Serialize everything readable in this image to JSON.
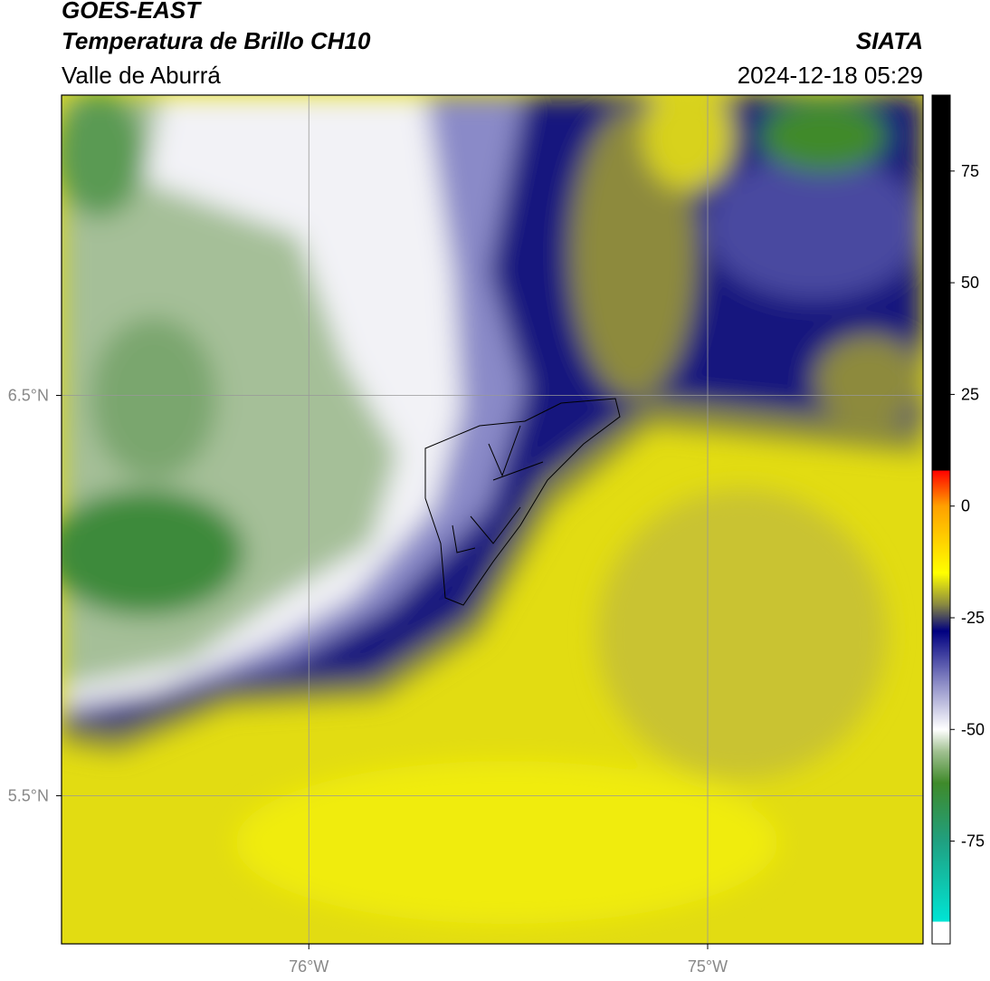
{
  "header": {
    "satellite": "GOES-EAST",
    "product": "Temperatura de Brillo CH10",
    "region": "Valle de Aburrá",
    "source": "SIATA",
    "datetime": "2024-12-18 05:29"
  },
  "map": {
    "xlim": [
      -76.62,
      -74.46
    ],
    "ylim": [
      5.13,
      7.25
    ],
    "xticks": [
      {
        "value": -76,
        "label": "76°W"
      },
      {
        "value": -75,
        "label": "75°W"
      }
    ],
    "yticks": [
      {
        "value": 6.5,
        "label": "6.5°N"
      },
      {
        "value": 5.5,
        "label": "5.5°N"
      }
    ]
  },
  "colorbar": {
    "lim": [
      -98,
      92
    ],
    "ticks": [
      75,
      50,
      25,
      0,
      -25,
      -50,
      -75
    ],
    "stops": [
      {
        "value": -98,
        "color": "#ffffff"
      },
      {
        "value": -93,
        "color": "#ffffff"
      },
      {
        "value": -93,
        "color": "#00e5d5"
      },
      {
        "value": -75,
        "color": "#20a080"
      },
      {
        "value": -62,
        "color": "#3f8a2a"
      },
      {
        "value": -55,
        "color": "#a0c090"
      },
      {
        "value": -50,
        "color": "#ffffff"
      },
      {
        "value": -40,
        "color": "#9090c8"
      },
      {
        "value": -28,
        "color": "#000080"
      },
      {
        "value": -22,
        "color": "#8a8a40"
      },
      {
        "value": -15,
        "color": "#ffff00"
      },
      {
        "value": 0,
        "color": "#ffa000"
      },
      {
        "value": 8,
        "color": "#ff0000"
      },
      {
        "value": 8,
        "color": "#000000"
      },
      {
        "value": 92,
        "color": "#000000"
      }
    ]
  }
}
